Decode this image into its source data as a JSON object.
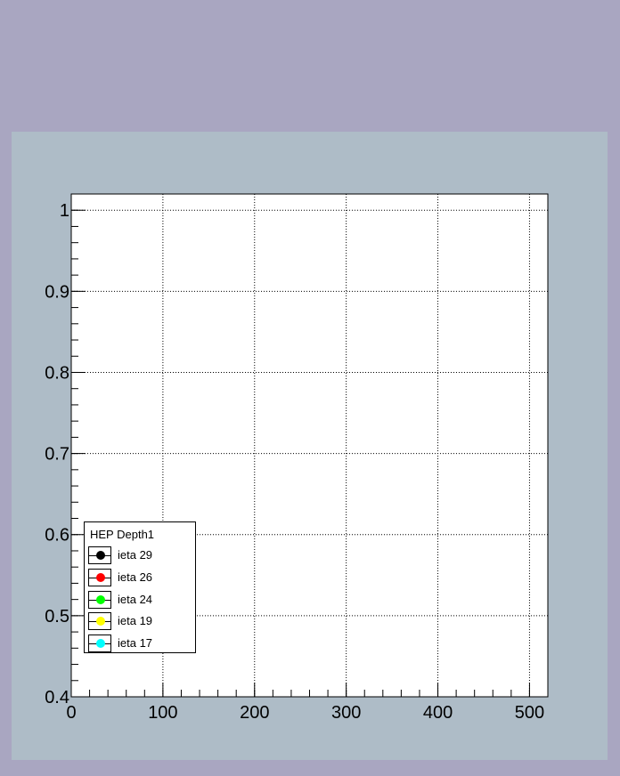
{
  "chart_data": {
    "type": "scatter",
    "title": "",
    "xlabel": "",
    "ylabel": "",
    "xlim": [
      0,
      520
    ],
    "ylim": [
      0.4,
      1.02
    ],
    "x_ticks": [
      0,
      100,
      200,
      300,
      400,
      500
    ],
    "x_tick_labels": [
      "0",
      "100",
      "200",
      "300",
      "400",
      "500"
    ],
    "y_ticks": [
      0.4,
      0.5,
      0.6,
      0.7,
      0.8,
      0.9,
      1.0
    ],
    "y_tick_labels": [
      "0.4",
      "0.5",
      "0.6",
      "0.7",
      "0.8",
      "0.9",
      "1"
    ],
    "x_minor_step": 20,
    "y_minor_step": 0.02,
    "grid": true,
    "legend_position": "bottom-left",
    "legend_title": "HEP Depth1",
    "series": [
      {
        "name": "ieta 29",
        "color": "#000000",
        "points": []
      },
      {
        "name": "ieta 26",
        "color": "#ff0000",
        "points": []
      },
      {
        "name": "ieta 24",
        "color": "#00ff00",
        "points": []
      },
      {
        "name": "ieta 19",
        "color": "#ffff00",
        "points": []
      },
      {
        "name": "ieta 17",
        "color": "#00ffff",
        "points": []
      }
    ]
  }
}
